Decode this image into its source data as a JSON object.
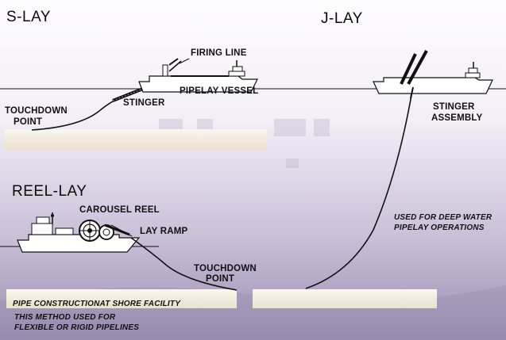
{
  "sections": {
    "s_lay": "S-LAY",
    "j_lay": "J-LAY",
    "reel_lay": "REEL-LAY"
  },
  "s_lay_labels": {
    "firing_line": "FIRING LINE",
    "stinger": "STINGER",
    "pipelay_vessel": "PIPELAY VESSEL",
    "touchdown_line1": "TOUCHDOWN",
    "touchdown_line2": "POINT"
  },
  "j_lay_labels": {
    "stinger_line1": "STINGER",
    "stinger_line2": "ASSEMBLY",
    "deep_water_line1": "USED FOR DEEP WATER",
    "deep_water_line2": "PIPELAY OPERATIONS"
  },
  "reel_lay_labels": {
    "carousel_reel": "CAROUSEL REEL",
    "lay_ramp": "LAY RAMP",
    "touchdown_line1": "TOUCHDOWN",
    "touchdown_line2": "POINT",
    "shore_facility": "PIPE CONSTRUCTIONAT SHORE FACILITY",
    "method_line1": "THIS METHOD USED FOR",
    "method_line2": "FLEXIBLE OR RIGID PIPELINES"
  },
  "colors": {
    "background_top": "#fbf9fc",
    "background_bottom": "#9d8fb3",
    "seabed": "#f3ecdc",
    "line": "#111111"
  },
  "icons": [
    "pipelay-vessel-icon",
    "j-lay-vessel-icon",
    "reel-lay-vessel-icon",
    "carousel-reel-icon"
  ]
}
